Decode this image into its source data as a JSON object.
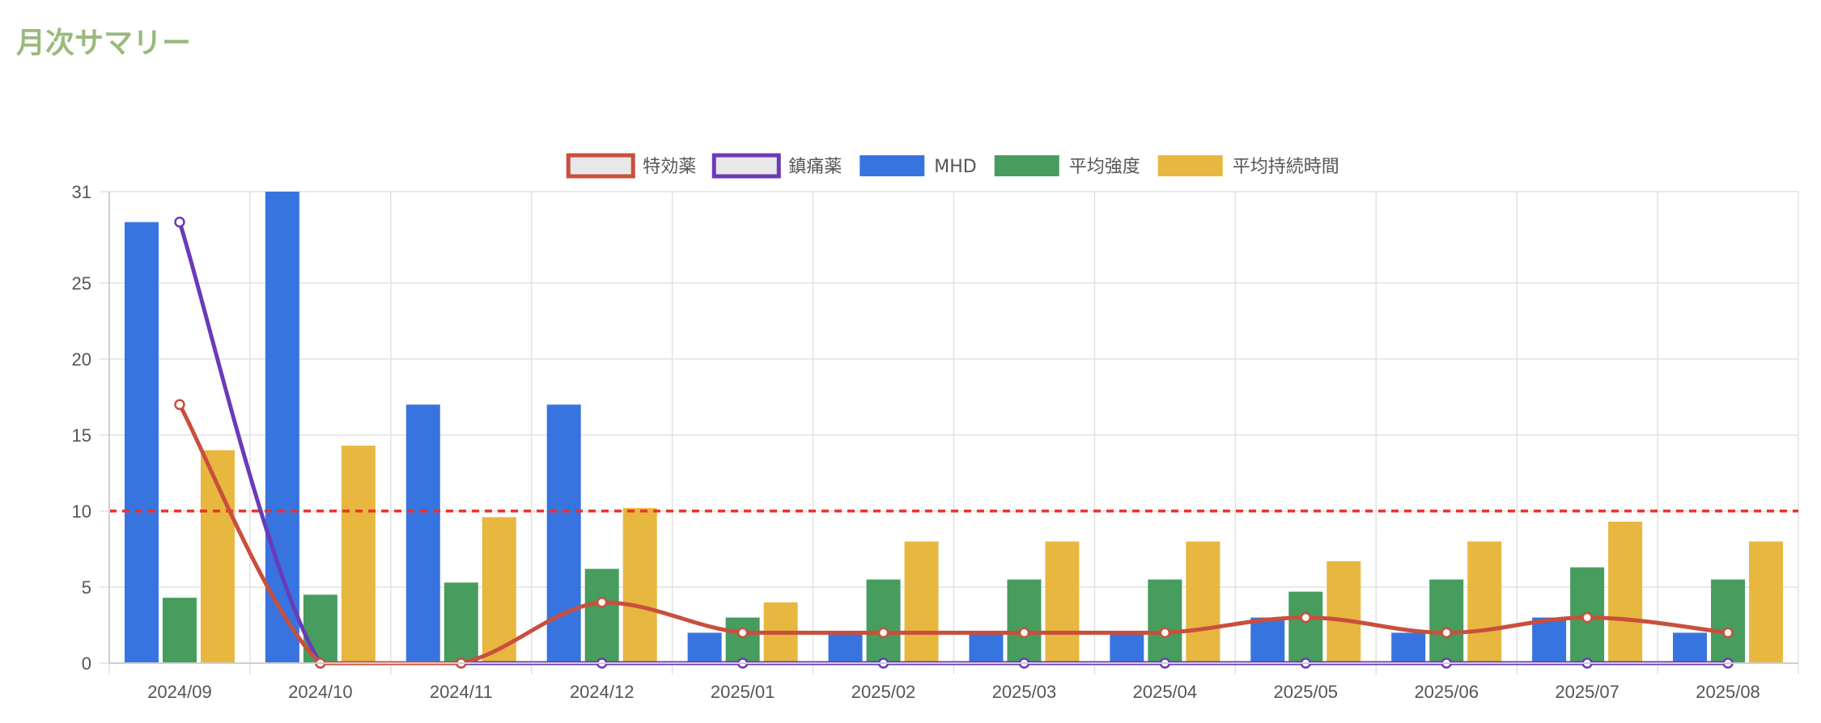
{
  "page": {
    "title": "月次サマリー"
  },
  "chart_data": {
    "type": "bar",
    "categories": [
      "2024/09",
      "2024/10",
      "2024/11",
      "2024/12",
      "2025/01",
      "2025/02",
      "2025/03",
      "2025/04",
      "2025/05",
      "2025/06",
      "2025/07",
      "2025/08"
    ],
    "ylim": [
      0,
      31
    ],
    "yticks": [
      0,
      5,
      10,
      15,
      20,
      25,
      31
    ],
    "grid": true,
    "legend_position": "top-center",
    "reference_line": {
      "value": 10,
      "color": "#e8322a",
      "style": "dashed"
    },
    "series": [
      {
        "name": "特効薬",
        "type": "line",
        "color": "#c94f3d",
        "values": [
          17,
          0,
          0,
          4,
          2,
          2,
          2,
          2,
          3,
          2,
          3,
          2
        ]
      },
      {
        "name": "鎮痛薬",
        "type": "line",
        "color": "#6a3bb8",
        "values": [
          29,
          0,
          0,
          0,
          0,
          0,
          0,
          0,
          0,
          0,
          0,
          0
        ]
      },
      {
        "name": "MHD",
        "type": "bar",
        "color": "#3874e0",
        "values": [
          29,
          31,
          17,
          17,
          2,
          2,
          2,
          2,
          3,
          2,
          3,
          2
        ]
      },
      {
        "name": "平均強度",
        "type": "bar",
        "color": "#469d5e",
        "values": [
          4.3,
          4.5,
          5.3,
          6.2,
          3,
          5.5,
          5.5,
          5.5,
          4.7,
          5.5,
          6.3,
          5.5
        ]
      },
      {
        "name": "平均持続時間",
        "type": "bar",
        "color": "#e8b73f",
        "values": [
          14,
          14.3,
          9.6,
          10.2,
          4,
          8,
          8,
          8,
          6.7,
          8,
          9.3,
          8
        ]
      }
    ]
  }
}
